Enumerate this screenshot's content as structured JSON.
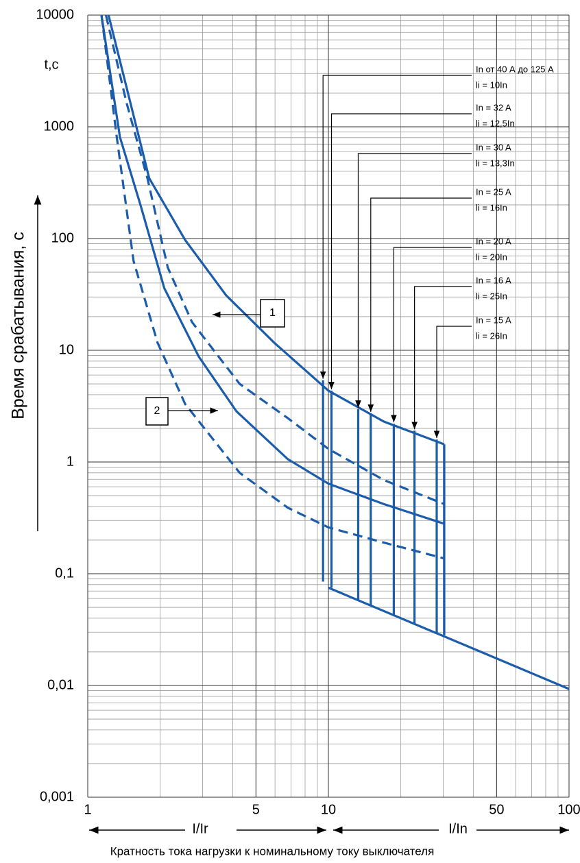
{
  "chart_data": {
    "type": "line",
    "log_x": true,
    "log_y": true,
    "grid": true,
    "minor_grid": true,
    "color": "#1b5cab",
    "y_unit_label": "t,c",
    "ylabel": "Время срабатывания, с",
    "xlabel_left": "I/Ir",
    "xlabel_right": "I/In",
    "caption": "Кратность тока нагрузки к номинальному току выключателя",
    "xlim": [
      1,
      100
    ],
    "ylim": [
      0.001,
      10000
    ],
    "xticks": [
      1,
      5,
      10,
      50,
      100
    ],
    "yticks": [
      10000,
      1000,
      100,
      10,
      1,
      {
        "value": 0.1,
        "label": "0,1"
      },
      {
        "value": 0.01,
        "label": "0,01"
      },
      {
        "value": 0.001,
        "label": "0,001"
      }
    ],
    "series": [
      {
        "dash": false,
        "x": [
          1.22,
          1.8,
          2.54,
          3.76,
          5.95,
          10,
          17,
          30.3
        ],
        "values": [
          10000,
          347,
          97,
          31,
          11.7,
          4.35,
          2.3,
          1.44
        ]
      },
      {
        "dash": false,
        "x": [
          1.14,
          1.36,
          1.66,
          2.08,
          2.89,
          4.15,
          6.78,
          10,
          17,
          30.3
        ],
        "values": [
          10000,
          810,
          196,
          36,
          8.8,
          2.84,
          1.06,
          0.64,
          0.42,
          0.28
        ]
      },
      {
        "dash": true,
        "x": [
          1.19,
          1.45,
          1.77,
          2.15,
          2.71,
          4.28,
          6.78,
          10,
          17,
          30.3
        ],
        "values": [
          10000,
          1640,
          347,
          55,
          17.9,
          5,
          2.47,
          1.31,
          0.69,
          0.42
        ]
      },
      {
        "dash": true,
        "x": [
          1.14,
          1.32,
          1.55,
          1.95,
          2.54,
          4.28,
          6.78,
          10,
          17,
          30.3
        ],
        "values": [
          10000,
          810,
          63,
          11.7,
          3.3,
          0.8,
          0.39,
          0.26,
          0.19,
          0.137
        ]
      },
      {
        "dash": false,
        "x": [
          10,
          100
        ],
        "values": [
          0.075,
          0.0093
        ]
      },
      {
        "dash": false,
        "x": [
          9.5,
          9.5
        ],
        "values": [
          5.4,
          0.085
        ]
      },
      {
        "dash": false,
        "x": [
          10.3,
          10.3
        ],
        "values": [
          4.35,
          0.075
        ]
      },
      {
        "dash": false,
        "x": [
          13.3,
          13.3
        ],
        "values": [
          2.97,
          0.0586
        ]
      },
      {
        "dash": false,
        "x": [
          15,
          15
        ],
        "values": [
          2.73,
          0.0525
        ]
      },
      {
        "dash": false,
        "x": [
          18.7,
          18.7
        ],
        "values": [
          2.2,
          0.043
        ]
      },
      {
        "dash": false,
        "x": [
          22.8,
          22.8
        ],
        "values": [
          1.91,
          0.0359
        ]
      },
      {
        "dash": false,
        "x": [
          28.2,
          28.2
        ],
        "values": [
          1.59,
          0.0296
        ]
      },
      {
        "dash": false,
        "x": [
          30.3,
          30.3
        ],
        "values": [
          1.44,
          0.0282
        ]
      }
    ],
    "annotations": [
      {
        "lines": [
          "In от 40 А до 125 А",
          "li = 10In"
        ]
      },
      {
        "lines": [
          "In  = 32 A",
          "li = 12,5In"
        ]
      },
      {
        "lines": [
          "In = 30 A",
          "li = 13,3In"
        ]
      },
      {
        "lines": [
          "In = 25 A",
          "li = 16In"
        ]
      },
      {
        "lines": [
          "In = 20 A",
          "li = 20In"
        ]
      },
      {
        "lines": [
          "In = 16 A",
          "li = 25In"
        ]
      },
      {
        "lines": [
          "In = 15 A",
          "li = 26In"
        ]
      }
    ],
    "callouts": [
      "1",
      "2"
    ]
  }
}
